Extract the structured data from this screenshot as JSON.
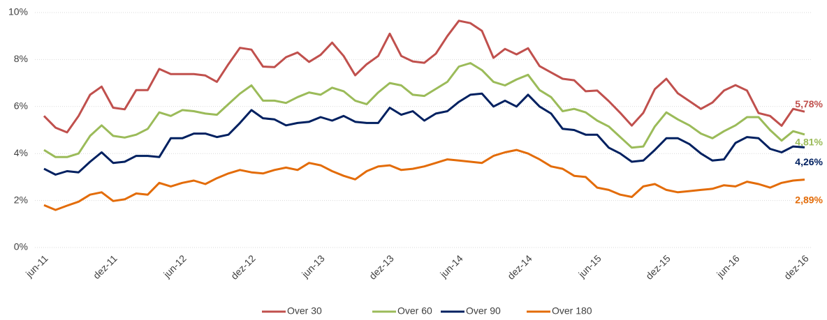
{
  "chart_data": {
    "type": "line",
    "categories": [
      "jun-11",
      null,
      null,
      null,
      null,
      null,
      "dez-11",
      null,
      null,
      null,
      null,
      null,
      "jun-12",
      null,
      null,
      null,
      null,
      null,
      "dez-12",
      null,
      null,
      null,
      null,
      null,
      "jun-13",
      null,
      null,
      null,
      null,
      null,
      "dez-13",
      null,
      null,
      null,
      null,
      null,
      "jun-14",
      null,
      null,
      null,
      null,
      null,
      "dez-14",
      null,
      null,
      null,
      null,
      null,
      "jun-15",
      null,
      null,
      null,
      null,
      null,
      "dez-15",
      null,
      null,
      null,
      null,
      null,
      "jun-16",
      null,
      null,
      null,
      null,
      null,
      "dez-16"
    ],
    "ylim": [
      0,
      10
    ],
    "yticks": [
      {
        "value": 0,
        "label": "0%"
      },
      {
        "value": 2,
        "label": "2%"
      },
      {
        "value": 4,
        "label": "4%"
      },
      {
        "value": 6,
        "label": "6%"
      },
      {
        "value": 8,
        "label": "8%"
      },
      {
        "value": 10,
        "label": "10%"
      }
    ],
    "grid": true,
    "legend": "bottom",
    "series": [
      {
        "name": "Over 30",
        "color": "#c0504d",
        "values": [
          5.6,
          5.1,
          4.9,
          5.6,
          6.5,
          6.85,
          5.95,
          5.88,
          6.7,
          6.7,
          7.6,
          7.38,
          7.38,
          7.38,
          7.32,
          7.05,
          7.8,
          8.5,
          8.42,
          7.7,
          7.68,
          8.1,
          8.3,
          7.9,
          8.2,
          8.72,
          8.15,
          7.33,
          7.8,
          8.15,
          9.1,
          8.15,
          7.92,
          7.86,
          8.25,
          9.0,
          9.65,
          9.55,
          9.22,
          8.07,
          8.45,
          8.22,
          8.48,
          7.72,
          7.45,
          7.18,
          7.12,
          6.65,
          6.68,
          6.23,
          5.73,
          5.19,
          5.73,
          6.74,
          7.18,
          6.56,
          6.23,
          5.9,
          6.17,
          6.68,
          6.91,
          6.68,
          5.72,
          5.6,
          5.18,
          5.9,
          5.78
        ],
        "value_labels": [
          null,
          null,
          null,
          null,
          null,
          null,
          null,
          null,
          null,
          null,
          null,
          null,
          null,
          null,
          null,
          null,
          null,
          null,
          null,
          null,
          null,
          null,
          null,
          null,
          null,
          null,
          null,
          null,
          null,
          null,
          null,
          null,
          null,
          null,
          null,
          null,
          null,
          null,
          null,
          null,
          null,
          null,
          null,
          null,
          null,
          null,
          null,
          null,
          null,
          null,
          null,
          null,
          null,
          null,
          null,
          null,
          null,
          null,
          null,
          null,
          null,
          null,
          null,
          null,
          null,
          null,
          "5,78%"
        ]
      },
      {
        "name": "Over 60",
        "color": "#9bbb59",
        "values": [
          4.15,
          3.85,
          3.85,
          4.0,
          4.75,
          5.2,
          4.75,
          4.68,
          4.8,
          5.05,
          5.75,
          5.6,
          5.85,
          5.8,
          5.7,
          5.65,
          6.1,
          6.55,
          6.9,
          6.25,
          6.25,
          6.15,
          6.4,
          6.6,
          6.5,
          6.8,
          6.65,
          6.25,
          6.1,
          6.6,
          7.0,
          6.9,
          6.5,
          6.45,
          6.75,
          7.05,
          7.7,
          7.85,
          7.55,
          7.05,
          6.9,
          7.15,
          7.35,
          6.7,
          6.4,
          5.8,
          5.9,
          5.75,
          5.4,
          5.15,
          4.7,
          4.25,
          4.3,
          5.15,
          5.75,
          5.45,
          5.2,
          4.85,
          4.65,
          4.95,
          5.2,
          5.55,
          5.55,
          5.0,
          4.55,
          4.95,
          4.81
        ],
        "value_labels": [
          null,
          null,
          null,
          null,
          null,
          null,
          null,
          null,
          null,
          null,
          null,
          null,
          null,
          null,
          null,
          null,
          null,
          null,
          null,
          null,
          null,
          null,
          null,
          null,
          null,
          null,
          null,
          null,
          null,
          null,
          null,
          null,
          null,
          null,
          null,
          null,
          null,
          null,
          null,
          null,
          null,
          null,
          null,
          null,
          null,
          null,
          null,
          null,
          null,
          null,
          null,
          null,
          null,
          null,
          null,
          null,
          null,
          null,
          null,
          null,
          null,
          null,
          null,
          null,
          null,
          null,
          "4,81%"
        ]
      },
      {
        "name": "Over 90",
        "color": "#002060",
        "values": [
          3.35,
          3.1,
          3.25,
          3.2,
          3.65,
          4.05,
          3.6,
          3.65,
          3.9,
          3.9,
          3.85,
          4.65,
          4.65,
          4.85,
          4.85,
          4.7,
          4.8,
          5.3,
          5.85,
          5.5,
          5.45,
          5.2,
          5.3,
          5.35,
          5.55,
          5.4,
          5.6,
          5.35,
          5.3,
          5.3,
          5.95,
          5.65,
          5.8,
          5.4,
          5.7,
          5.8,
          6.2,
          6.5,
          6.55,
          6.0,
          6.25,
          6.0,
          6.5,
          6.0,
          5.7,
          5.05,
          5.0,
          4.8,
          4.8,
          4.25,
          4.0,
          3.65,
          3.7,
          4.15,
          4.65,
          4.65,
          4.4,
          4.0,
          3.7,
          3.75,
          4.45,
          4.7,
          4.65,
          4.2,
          4.05,
          4.3,
          4.26
        ],
        "value_labels": [
          null,
          null,
          null,
          null,
          null,
          null,
          null,
          null,
          null,
          null,
          null,
          null,
          null,
          null,
          null,
          null,
          null,
          null,
          null,
          null,
          null,
          null,
          null,
          null,
          null,
          null,
          null,
          null,
          null,
          null,
          null,
          null,
          null,
          null,
          null,
          null,
          null,
          null,
          null,
          null,
          null,
          null,
          null,
          null,
          null,
          null,
          null,
          null,
          null,
          null,
          null,
          null,
          null,
          null,
          null,
          null,
          null,
          null,
          null,
          null,
          null,
          null,
          null,
          null,
          null,
          null,
          "4,26%"
        ]
      },
      {
        "name": "Over 180",
        "color": "#e36c09",
        "values": [
          1.8,
          1.6,
          1.78,
          1.95,
          2.25,
          2.35,
          1.98,
          2.05,
          2.3,
          2.25,
          2.75,
          2.6,
          2.75,
          2.85,
          2.7,
          2.95,
          3.15,
          3.3,
          3.2,
          3.15,
          3.3,
          3.4,
          3.3,
          3.6,
          3.5,
          3.25,
          3.05,
          2.9,
          3.25,
          3.45,
          3.5,
          3.3,
          3.35,
          3.45,
          3.6,
          3.75,
          3.7,
          3.65,
          3.6,
          3.9,
          4.05,
          4.15,
          4.0,
          3.75,
          3.45,
          3.35,
          3.05,
          3.0,
          2.55,
          2.45,
          2.25,
          2.15,
          2.6,
          2.7,
          2.45,
          2.35,
          2.4,
          2.45,
          2.5,
          2.65,
          2.6,
          2.8,
          2.7,
          2.55,
          2.75,
          2.85,
          2.89
        ],
        "value_labels": [
          null,
          null,
          null,
          null,
          null,
          null,
          null,
          null,
          null,
          null,
          null,
          null,
          null,
          null,
          null,
          null,
          null,
          null,
          null,
          null,
          null,
          null,
          null,
          null,
          null,
          null,
          null,
          null,
          null,
          null,
          null,
          null,
          null,
          null,
          null,
          null,
          null,
          null,
          null,
          null,
          null,
          null,
          null,
          null,
          null,
          null,
          null,
          null,
          null,
          null,
          null,
          null,
          null,
          null,
          null,
          null,
          null,
          null,
          null,
          null,
          null,
          null,
          null,
          null,
          null,
          null,
          "2,89%"
        ]
      }
    ]
  }
}
